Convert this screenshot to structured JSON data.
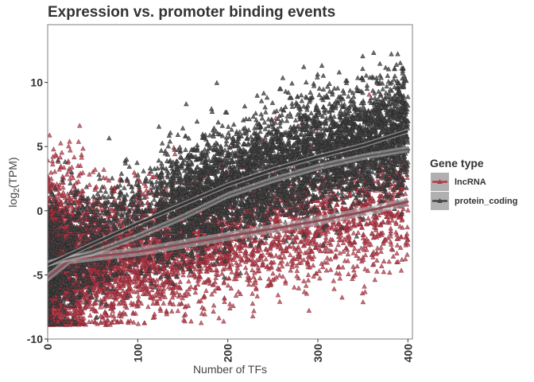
{
  "chart_data": {
    "type": "scatter",
    "title": "Expression vs. promoter binding events",
    "xlabel": "Number of TFs",
    "ylabel_main": "log",
    "ylabel_sub": "2",
    "ylabel_rest": "(TPM)",
    "xlim": [
      0,
      405
    ],
    "ylim": [
      -10,
      14.5
    ],
    "x_ticks": [
      0,
      100,
      200,
      300,
      400
    ],
    "y_ticks": [
      -10,
      -5,
      0,
      5,
      10
    ],
    "x_tick_labels": [
      "0",
      "100",
      "200",
      "300",
      "400"
    ],
    "y_tick_labels": [
      "-10",
      "-5",
      "0",
      "5",
      "10"
    ],
    "marker": "triangle",
    "grid": false,
    "legend": {
      "title": "Gene type",
      "position": "right",
      "entries": [
        "lncRNA",
        "protein_coding"
      ]
    },
    "series": [
      {
        "name": "lncRNA",
        "color": "#b23a48",
        "point_count": 6000,
        "x_range": [
          0,
          400
        ],
        "point_density": "high near x=0, decreasing with x",
        "trend": [
          [
            0,
            -5.2
          ],
          [
            25,
            -3.8
          ],
          [
            50,
            -3.6
          ],
          [
            100,
            -3.2
          ],
          [
            150,
            -2.6
          ],
          [
            200,
            -2.0
          ],
          [
            250,
            -1.4
          ],
          [
            300,
            -0.8
          ],
          [
            350,
            -0.1
          ],
          [
            400,
            0.7
          ]
        ],
        "spread_sd": 2.2
      },
      {
        "name": "protein_coding",
        "color": "#444444",
        "point_count": 6000,
        "x_range": [
          0,
          400
        ],
        "point_density": "moderate near x=0, dense at 200-350",
        "trend": [
          [
            0,
            -4.2
          ],
          [
            50,
            -2.6
          ],
          [
            100,
            -1.0
          ],
          [
            150,
            0.5
          ],
          [
            200,
            2.0
          ],
          [
            250,
            3.2
          ],
          [
            300,
            4.2
          ],
          [
            350,
            5.1
          ],
          [
            400,
            6.2
          ]
        ],
        "trend_secondary": [
          [
            0,
            -4.1
          ],
          [
            50,
            -3.3
          ],
          [
            100,
            -2.0
          ],
          [
            150,
            -0.5
          ],
          [
            200,
            1.2
          ],
          [
            250,
            2.4
          ],
          [
            300,
            3.4
          ],
          [
            350,
            4.2
          ],
          [
            400,
            4.8
          ]
        ],
        "spread_sd": 2.0
      }
    ]
  }
}
